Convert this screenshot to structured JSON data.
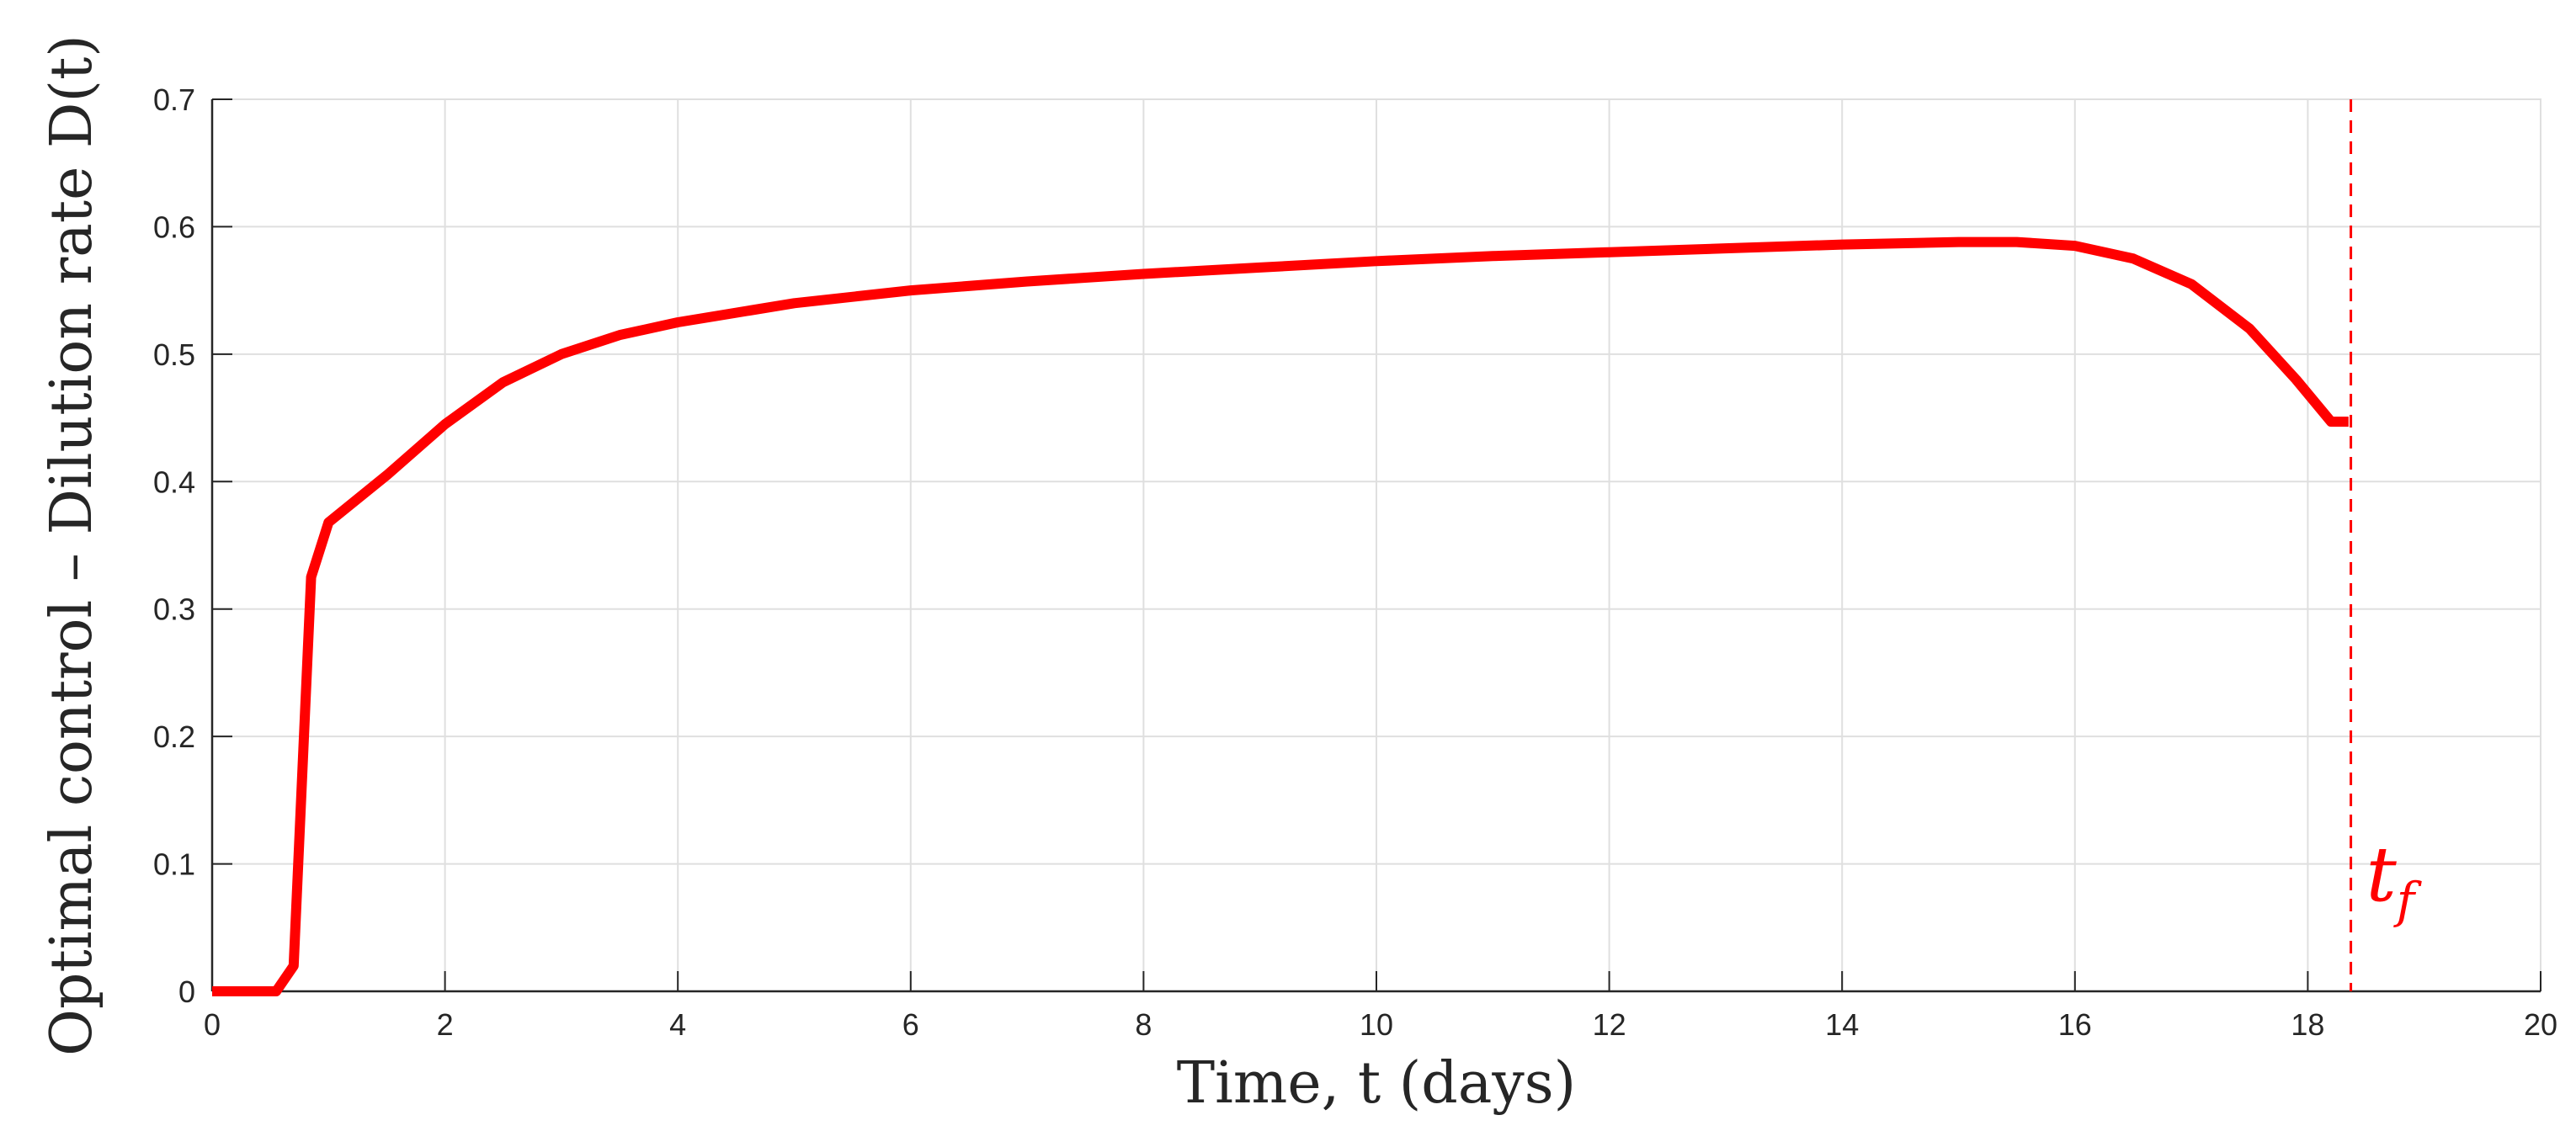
{
  "chart_data": {
    "type": "line",
    "xlabel": "Time, t (days)",
    "ylabel": "Optimal control – Dilution rate D(t)",
    "xlim": [
      0,
      20
    ],
    "ylim": [
      0,
      0.7
    ],
    "x_ticks": [
      "0",
      "2",
      "4",
      "6",
      "8",
      "10",
      "12",
      "14",
      "16",
      "18",
      "20"
    ],
    "y_ticks": [
      "0",
      "0.1",
      "0.2",
      "0.3",
      "0.4",
      "0.5",
      "0.6",
      "0.7"
    ],
    "grid": true,
    "series": [
      {
        "color": "#ff0000",
        "x": [
          0,
          0.55,
          0.7,
          0.85,
          1.0,
          1.5,
          2.0,
          2.5,
          3.0,
          3.5,
          4.0,
          5.0,
          6.0,
          7.0,
          8.0,
          9.0,
          10.0,
          11.0,
          12.0,
          13.0,
          14.0,
          15.0,
          15.5,
          16.0,
          16.5,
          17.0,
          17.5,
          17.9,
          18.2,
          18.35
        ],
        "y": [
          0,
          0,
          0.02,
          0.325,
          0.368,
          0.405,
          0.445,
          0.478,
          0.5,
          0.515,
          0.525,
          0.54,
          0.55,
          0.557,
          0.563,
          0.568,
          0.573,
          0.577,
          0.58,
          0.583,
          0.586,
          0.588,
          0.588,
          0.585,
          0.575,
          0.555,
          0.52,
          0.48,
          0.447,
          0.447
        ]
      }
    ],
    "annotations": [
      {
        "type": "vertical-line",
        "x": 18.37,
        "label": "t_f",
        "color": "#ff0000",
        "style": "dashed"
      }
    ]
  },
  "colors": {
    "series": "#ff0000",
    "axis": "#262626",
    "grid": "#dfdfdf"
  }
}
